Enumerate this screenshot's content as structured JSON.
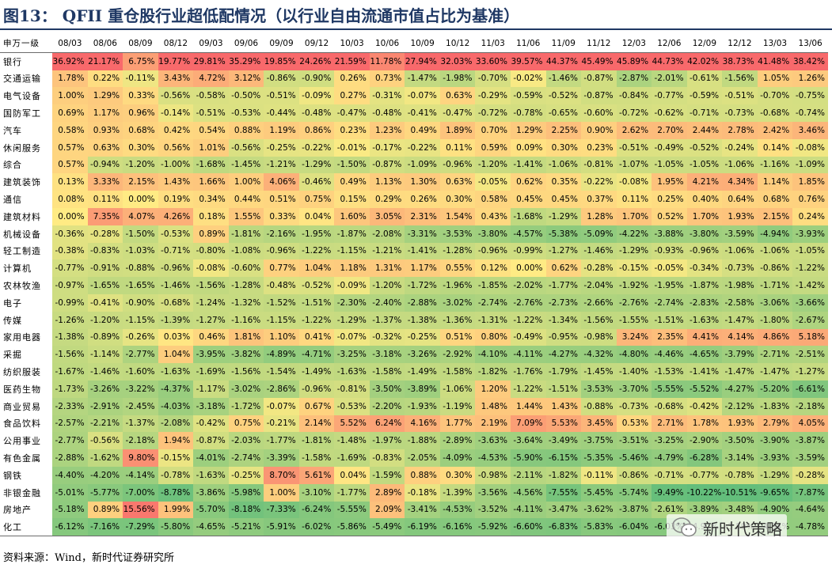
{
  "title": "图13： QFII 重仓股行业超低配情况（以行业自由流通市值占比为基准）",
  "table": {
    "corner": "申万一级",
    "periods": [
      "08/03",
      "08/06",
      "08/09",
      "08/12",
      "09/03",
      "09/06",
      "09/09",
      "09/12",
      "10/03",
      "10/06",
      "10/09",
      "10/12",
      "11/03",
      "11/06",
      "11/09",
      "11/12",
      "12/03",
      "12/06",
      "12/09",
      "12/12",
      "13/03",
      "13/06"
    ],
    "rows": [
      {
        "name": "银行",
        "values": [
          "36.92%",
          "21.17%",
          "6.75%",
          "19.77%",
          "29.81%",
          "35.29%",
          "19.85%",
          "24.26%",
          "21.59%",
          "11.78%",
          "27.94%",
          "32.03%",
          "33.60%",
          "39.57%",
          "44.37%",
          "45.49%",
          "45.89%",
          "44.73%",
          "42.02%",
          "38.73%",
          "41.48%",
          "38.42%"
        ]
      },
      {
        "name": "交通运输",
        "values": [
          "1.78%",
          "0.22%",
          "-0.11%",
          "3.43%",
          "4.72%",
          "3.12%",
          "-0.86%",
          "-0.90%",
          "0.26%",
          "0.73%",
          "-1.47%",
          "-1.98%",
          "-0.70%",
          "-0.02%",
          "-1.46%",
          "-0.87%",
          "-2.87%",
          "-2.01%",
          "-0.61%",
          "-1.56%",
          "1.05%",
          "1.26%"
        ]
      },
      {
        "name": "电气设备",
        "values": [
          "1.00%",
          "1.29%",
          "0.33%",
          "-0.56%",
          "-0.58%",
          "-0.50%",
          "-0.51%",
          "-0.09%",
          "0.27%",
          "-0.31%",
          "-0.07%",
          "0.63%",
          "-0.29%",
          "-0.59%",
          "-0.52%",
          "-0.87%",
          "-0.84%",
          "-0.77%",
          "-0.59%",
          "-0.51%",
          "-0.70%",
          "-0.75%"
        ]
      },
      {
        "name": "国防军工",
        "values": [
          "0.69%",
          "1.17%",
          "0.96%",
          "-0.14%",
          "-0.51%",
          "-0.53%",
          "-0.44%",
          "-0.48%",
          "-0.47%",
          "-0.48%",
          "-0.41%",
          "-0.47%",
          "-0.72%",
          "-0.78%",
          "-0.65%",
          "-0.60%",
          "-0.72%",
          "-0.62%",
          "-0.71%",
          "-0.73%",
          "-0.68%",
          "-0.74%"
        ]
      },
      {
        "name": "汽车",
        "values": [
          "0.58%",
          "0.93%",
          "0.68%",
          "0.42%",
          "0.54%",
          "0.88%",
          "1.19%",
          "0.86%",
          "0.23%",
          "1.23%",
          "0.49%",
          "1.89%",
          "0.70%",
          "1.29%",
          "2.25%",
          "0.90%",
          "2.62%",
          "2.70%",
          "2.44%",
          "2.78%",
          "2.42%",
          "3.46%"
        ]
      },
      {
        "name": "休闲服务",
        "values": [
          "0.57%",
          "0.63%",
          "0.30%",
          "0.56%",
          "1.01%",
          "-0.56%",
          "-0.25%",
          "-0.22%",
          "-0.01%",
          "-0.17%",
          "-0.22%",
          "0.11%",
          "0.59%",
          "0.09%",
          "0.30%",
          "0.23%",
          "-0.51%",
          "-0.49%",
          "-0.52%",
          "-0.24%",
          "0.14%",
          "-0.08%"
        ]
      },
      {
        "name": "综合",
        "values": [
          "0.57%",
          "-0.94%",
          "-1.20%",
          "-1.00%",
          "-1.68%",
          "-1.45%",
          "-1.21%",
          "-1.29%",
          "-1.50%",
          "-0.87%",
          "-1.09%",
          "-0.96%",
          "-1.20%",
          "-1.41%",
          "-1.06%",
          "-0.81%",
          "-1.07%",
          "-1.05%",
          "-1.05%",
          "-1.06%",
          "-1.16%",
          "-1.09%"
        ]
      },
      {
        "name": "建筑装饰",
        "values": [
          "0.13%",
          "3.33%",
          "2.15%",
          "1.43%",
          "1.66%",
          "1.00%",
          "4.06%",
          "-0.46%",
          "0.49%",
          "1.13%",
          "1.30%",
          "0.63%",
          "-0.05%",
          "0.62%",
          "0.35%",
          "-0.22%",
          "-0.08%",
          "1.95%",
          "4.21%",
          "4.34%",
          "1.14%",
          "1.85%"
        ]
      },
      {
        "name": "通信",
        "values": [
          "0.08%",
          "0.11%",
          "0.00%",
          "0.19%",
          "0.34%",
          "0.44%",
          "0.51%",
          "0.75%",
          "0.15%",
          "0.29%",
          "0.26%",
          "0.30%",
          "0.58%",
          "0.45%",
          "0.45%",
          "0.37%",
          "0.11%",
          "0.25%",
          "0.40%",
          "0.64%",
          "0.68%",
          "0.76%"
        ]
      },
      {
        "name": "建筑材料",
        "values": [
          "0.00%",
          "7.35%",
          "4.07%",
          "4.26%",
          "0.18%",
          "1.55%",
          "0.33%",
          "0.04%",
          "1.60%",
          "3.05%",
          "2.31%",
          "1.54%",
          "0.43%",
          "-1.68%",
          "-1.29%",
          "1.28%",
          "1.70%",
          "0.52%",
          "1.70%",
          "1.93%",
          "2.15%",
          "0.24%"
        ]
      },
      {
        "name": "机械设备",
        "values": [
          "-0.36%",
          "-0.28%",
          "-1.50%",
          "-0.53%",
          "0.89%",
          "-1.81%",
          "-2.16%",
          "-1.95%",
          "-1.87%",
          "-2.08%",
          "-3.31%",
          "-3.53%",
          "-3.80%",
          "-4.57%",
          "-5.38%",
          "-5.09%",
          "-4.22%",
          "-3.88%",
          "-3.80%",
          "-3.59%",
          "-4.94%",
          "-3.93%"
        ]
      },
      {
        "name": "轻工制造",
        "values": [
          "-0.38%",
          "-0.83%",
          "-1.03%",
          "-0.71%",
          "-0.80%",
          "-1.08%",
          "-0.96%",
          "-1.22%",
          "-1.15%",
          "-1.21%",
          "-1.41%",
          "-1.28%",
          "-0.96%",
          "-0.99%",
          "-1.27%",
          "-1.46%",
          "-1.29%",
          "-0.93%",
          "-0.96%",
          "-1.06%",
          "-1.06%",
          "-1.05%"
        ]
      },
      {
        "name": "计算机",
        "values": [
          "-0.77%",
          "-0.91%",
          "-0.88%",
          "-0.96%",
          "-0.08%",
          "-0.60%",
          "0.77%",
          "1.04%",
          "1.18%",
          "1.31%",
          "1.17%",
          "0.55%",
          "0.12%",
          "0.00%",
          "0.62%",
          "-0.28%",
          "-0.15%",
          "-0.05%",
          "-0.34%",
          "-0.73%",
          "-0.86%",
          "-1.22%"
        ]
      },
      {
        "name": "农林牧渔",
        "values": [
          "-0.97%",
          "-1.65%",
          "-1.65%",
          "-1.46%",
          "-1.56%",
          "-1.28%",
          "-0.48%",
          "-0.52%",
          "-0.09%",
          "-1.20%",
          "-1.72%",
          "-1.96%",
          "-1.85%",
          "-2.02%",
          "-1.77%",
          "-2.04%",
          "-1.92%",
          "-1.95%",
          "-1.87%",
          "-1.98%",
          "-1.71%",
          "-1.42%"
        ]
      },
      {
        "name": "电子",
        "values": [
          "-0.99%",
          "-0.41%",
          "-0.90%",
          "-0.68%",
          "-1.24%",
          "-1.32%",
          "-1.52%",
          "-1.51%",
          "-2.30%",
          "-2.40%",
          "-2.88%",
          "-3.02%",
          "-2.74%",
          "-2.76%",
          "-2.73%",
          "-2.66%",
          "-2.76%",
          "-2.74%",
          "-2.83%",
          "-2.58%",
          "-3.06%",
          "-3.66%"
        ]
      },
      {
        "name": "传媒",
        "values": [
          "-1.26%",
          "-1.20%",
          "-1.15%",
          "-1.39%",
          "-1.27%",
          "-1.16%",
          "-1.15%",
          "-1.22%",
          "-1.29%",
          "-1.37%",
          "-1.38%",
          "-1.36%",
          "-1.31%",
          "-1.22%",
          "-1.34%",
          "-1.56%",
          "-1.55%",
          "-1.51%",
          "-1.63%",
          "-1.47%",
          "-1.80%",
          "-2.67%"
        ]
      },
      {
        "name": "家用电器",
        "values": [
          "-1.38%",
          "-0.89%",
          "-0.26%",
          "0.03%",
          "0.46%",
          "1.81%",
          "1.10%",
          "0.41%",
          "-0.07%",
          "-0.32%",
          "-0.25%",
          "0.51%",
          "0.80%",
          "-0.49%",
          "-0.95%",
          "-0.98%",
          "3.24%",
          "2.35%",
          "4.41%",
          "4.14%",
          "4.86%",
          "5.18%"
        ]
      },
      {
        "name": "采掘",
        "values": [
          "-1.56%",
          "-1.14%",
          "-2.77%",
          "1.04%",
          "-3.95%",
          "-3.82%",
          "-4.89%",
          "-4.71%",
          "-3.25%",
          "-3.18%",
          "-3.26%",
          "-2.92%",
          "-4.10%",
          "-4.11%",
          "-4.27%",
          "-4.32%",
          "-4.80%",
          "-4.46%",
          "-4.65%",
          "-3.79%",
          "-2.71%",
          "-2.51%"
        ]
      },
      {
        "name": "纺织服装",
        "values": [
          "-1.67%",
          "-1.46%",
          "-1.60%",
          "-1.63%",
          "-1.69%",
          "-1.56%",
          "-1.54%",
          "-1.49%",
          "-1.63%",
          "-1.58%",
          "-1.49%",
          "-1.58%",
          "-1.82%",
          "-1.76%",
          "-1.79%",
          "-1.45%",
          "-1.40%",
          "-1.53%",
          "-1.41%",
          "-1.47%",
          "-1.47%",
          "-1.27%"
        ]
      },
      {
        "name": "医药生物",
        "values": [
          "-1.73%",
          "-3.26%",
          "-3.22%",
          "-4.37%",
          "-1.17%",
          "-3.02%",
          "-2.86%",
          "-0.96%",
          "-0.81%",
          "-3.50%",
          "-3.89%",
          "-1.06%",
          "1.20%",
          "-1.22%",
          "-1.51%",
          "-3.53%",
          "-3.70%",
          "-5.55%",
          "-5.52%",
          "-4.27%",
          "-5.20%",
          "-6.61%"
        ]
      },
      {
        "name": "商业贸易",
        "values": [
          "-2.33%",
          "-2.91%",
          "-2.45%",
          "-4.03%",
          "-3.18%",
          "-1.72%",
          "-0.07%",
          "0.67%",
          "-0.53%",
          "-2.20%",
          "-1.93%",
          "-1.19%",
          "1.48%",
          "1.44%",
          "1.43%",
          "-0.88%",
          "-0.73%",
          "-0.68%",
          "-0.42%",
          "-2.12%",
          "-1.83%",
          "-2.18%"
        ]
      },
      {
        "name": "食品饮料",
        "values": [
          "-2.57%",
          "-2.21%",
          "-1.37%",
          "-2.08%",
          "-0.42%",
          "0.75%",
          "-0.21%",
          "2.14%",
          "5.52%",
          "6.24%",
          "4.16%",
          "1.77%",
          "2.19%",
          "7.09%",
          "5.53%",
          "3.45%",
          "0.53%",
          "2.71%",
          "1.78%",
          "1.93%",
          "2.79%",
          "4.05%"
        ]
      },
      {
        "name": "公用事业",
        "values": [
          "-2.77%",
          "-0.56%",
          "-2.18%",
          "1.94%",
          "-0.87%",
          "-2.03%",
          "-1.77%",
          "-1.81%",
          "-1.48%",
          "-1.97%",
          "-1.88%",
          "-2.89%",
          "-3.63%",
          "-3.64%",
          "-3.49%",
          "-3.75%",
          "-3.51%",
          "-3.25%",
          "-2.90%",
          "-3.50%",
          "-3.90%",
          "-3.87%"
        ]
      },
      {
        "name": "有色金属",
        "values": [
          "-2.88%",
          "-1.62%",
          "9.80%",
          "-0.15%",
          "-4.01%",
          "-2.74%",
          "-3.39%",
          "-1.58%",
          "-1.69%",
          "-0.83%",
          "-2.05%",
          "-4.09%",
          "-4.53%",
          "-5.90%",
          "-6.15%",
          "-5.35%",
          "-5.46%",
          "-4.79%",
          "-6.28%",
          "-3.14%",
          "-3.93%",
          "-3.59%"
        ]
      },
      {
        "name": "钢铁",
        "values": [
          "-4.40%",
          "-4.20%",
          "-4.14%",
          "-0.78%",
          "-1.63%",
          "-0.25%",
          "8.70%",
          "5.61%",
          "0.04%",
          "-1.59%",
          "0.88%",
          "0.30%",
          "-0.98%",
          "-2.11%",
          "-1.82%",
          "-0.11%",
          "-0.86%",
          "-0.71%",
          "-0.77%",
          "-0.78%",
          "-1.29%",
          "-0.28%"
        ]
      },
      {
        "name": "非银金融",
        "values": [
          "-5.01%",
          "-5.77%",
          "-7.00%",
          "-8.78%",
          "-3.86%",
          "-5.98%",
          "1.00%",
          "-3.10%",
          "-1.77%",
          "2.89%",
          "-0.18%",
          "-1.39%",
          "-3.56%",
          "-4.56%",
          "-7.55%",
          "-5.45%",
          "-5.74%",
          "-9.49%",
          "-10.22%",
          "-10.51%",
          "-9.65%",
          "-7.87%"
        ]
      },
      {
        "name": "房地产",
        "values": [
          "-5.18%",
          "0.89%",
          "15.56%",
          "1.99%",
          "-5.70%",
          "-8.18%",
          "-7.33%",
          "-6.24%",
          "-5.55%",
          "2.09%",
          "-3.41%",
          "-4.53%",
          "-3.52%",
          "-4.11%",
          "-3.47%",
          "-3.62%",
          "-3.87%",
          "-2.61%",
          "-3.89%",
          "-3.48%",
          "-4.90%",
          "-4.64%"
        ]
      },
      {
        "name": "化工",
        "values": [
          "-6.12%",
          "-7.16%",
          "-7.29%",
          "-5.80%",
          "-4.65%",
          "-5.21%",
          "-5.91%",
          "-6.02%",
          "-5.86%",
          "-5.49%",
          "-6.19%",
          "-6.16%",
          "-5.92%",
          "-6.60%",
          "-6.83%",
          "-5.83%",
          "-6.04%",
          "-6.03%",
          "-4.97%",
          "-3.59%",
          "-4.84%",
          "-4.78%"
        ]
      }
    ]
  },
  "source": "资料来源：Wind，新时代证券研究所",
  "watermark": "新时代策略",
  "colors": {
    "title": "#1f3864",
    "high": "#f8696b",
    "mid": "#ffeb84",
    "low": "#63be7b"
  }
}
